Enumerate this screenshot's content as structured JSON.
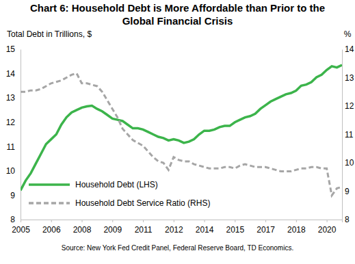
{
  "chart_data": {
    "type": "line",
    "title": "Chart 6: Household Debt is More Affordable than Prior to the Global Financial Crisis",
    "ylabel": "Total Debt in Trillions, $",
    "y2label": "%",
    "source": "Source: New York Fed Credit Panel, Federal Reserve Board, TD Economics.",
    "categories": [
      "2005",
      null,
      null,
      null,
      null,
      null,
      "2006",
      null,
      null,
      null,
      null,
      null,
      "2008",
      null,
      null,
      null,
      null,
      null,
      "2009",
      null,
      null,
      null,
      null,
      null,
      "2011",
      null,
      null,
      null,
      null,
      null,
      "2012",
      null,
      null,
      null,
      null,
      null,
      "2014",
      null,
      null,
      null,
      null,
      null,
      "2015",
      null,
      null,
      null,
      null,
      null,
      "2017",
      null,
      null,
      null,
      null,
      null,
      "2018",
      null,
      null,
      null,
      null,
      null,
      "2020",
      null,
      null,
      null
    ],
    "series": [
      {
        "name": "Household Debt (LHS)",
        "color": "#3cb44b",
        "line_style": "solid",
        "values": [
          9.2,
          9.6,
          9.9,
          10.3,
          10.7,
          11.1,
          11.3,
          11.5,
          11.9,
          12.2,
          12.4,
          12.5,
          12.6,
          12.65,
          12.68,
          12.55,
          12.45,
          12.3,
          12.15,
          12.1,
          12.05,
          11.9,
          11.75,
          11.75,
          11.7,
          11.6,
          11.5,
          11.4,
          11.35,
          11.25,
          11.3,
          11.25,
          11.15,
          11.2,
          11.3,
          11.5,
          11.65,
          11.65,
          11.7,
          11.8,
          11.85,
          11.85,
          12.0,
          12.1,
          12.2,
          12.25,
          12.35,
          12.55,
          12.7,
          12.85,
          12.95,
          13.05,
          13.15,
          13.2,
          13.3,
          13.5,
          13.55,
          13.65,
          13.85,
          13.95,
          14.15,
          14.3,
          14.25,
          14.35
        ]
      },
      {
        "name": "Household Debt Service Ratio (RHS)",
        "color": "#a6a6a6",
        "line_style": "dashed",
        "axis": "y2",
        "values": [
          12.5,
          12.5,
          12.55,
          12.55,
          12.6,
          12.7,
          12.8,
          12.85,
          12.9,
          13.0,
          13.1,
          13.15,
          12.8,
          12.8,
          12.75,
          12.7,
          12.5,
          12.2,
          11.9,
          11.6,
          11.2,
          11.0,
          10.8,
          10.7,
          10.6,
          10.4,
          10.2,
          10.05,
          10.0,
          9.75,
          10.2,
          10.1,
          10.05,
          10.05,
          9.95,
          9.9,
          9.85,
          9.8,
          9.8,
          9.8,
          9.85,
          9.85,
          9.8,
          9.9,
          9.95,
          9.9,
          9.85,
          9.85,
          9.85,
          9.8,
          9.75,
          9.7,
          9.7,
          9.7,
          9.75,
          9.8,
          9.8,
          9.85,
          9.85,
          9.8,
          9.8,
          8.85,
          9.1,
          9.15
        ]
      }
    ],
    "ylim": [
      8,
      15
    ],
    "yticks": [
      8,
      9,
      10,
      11,
      12,
      13,
      14,
      15
    ],
    "y2lim": [
      8,
      14
    ],
    "y2ticks": [
      8,
      9,
      10,
      11,
      12,
      13,
      14
    ],
    "grid": false,
    "legend": "lower left"
  }
}
